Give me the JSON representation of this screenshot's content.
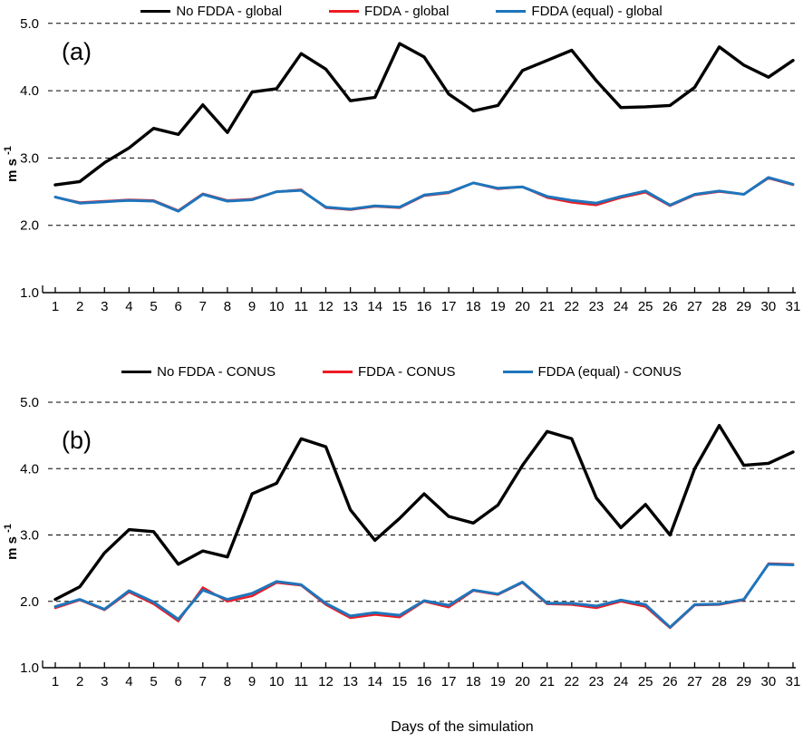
{
  "xlabel": "Days of the simulation",
  "colors": {
    "black": "#000000",
    "red": "#ED1C24",
    "blue": "#1F75BB"
  },
  "chart_data": [
    {
      "id": "a",
      "type": "line",
      "panel_label": "(a)",
      "ylabel": {
        "base": "m s",
        "sup": "-1"
      },
      "ylim": [
        1.0,
        5.0
      ],
      "grid": "horizontal-dashed",
      "legend_position": "top-center",
      "yticks": [
        {
          "value": 1.0,
          "label": "1.0"
        },
        {
          "value": 2.0,
          "label": "2.0"
        },
        {
          "value": 3.0,
          "label": "3.0"
        },
        {
          "value": 4.0,
          "label": "4.0"
        },
        {
          "value": 5.0,
          "label": "5.0"
        }
      ],
      "x": [
        1,
        2,
        3,
        4,
        5,
        6,
        7,
        8,
        9,
        10,
        11,
        12,
        13,
        14,
        15,
        16,
        17,
        18,
        19,
        20,
        21,
        22,
        23,
        24,
        25,
        26,
        27,
        28,
        29,
        30,
        31
      ],
      "series": [
        {
          "name": "No FDDA -  global",
          "color": "#000000",
          "stroke_width": 3.4,
          "values": [
            2.6,
            2.65,
            2.93,
            3.15,
            3.44,
            3.35,
            3.79,
            3.38,
            3.98,
            4.03,
            4.55,
            4.32,
            3.85,
            3.9,
            4.7,
            4.5,
            3.95,
            3.7,
            3.78,
            4.3,
            4.45,
            4.6,
            4.15,
            3.75,
            3.76,
            3.78,
            4.05,
            4.65,
            4.38,
            4.2,
            4.45
          ]
        },
        {
          "name": "FDDA -  global",
          "color": "#ED1C24",
          "stroke_width": 2.4,
          "values": [
            2.42,
            2.34,
            2.36,
            2.38,
            2.37,
            2.22,
            2.47,
            2.37,
            2.39,
            2.5,
            2.53,
            2.26,
            2.23,
            2.28,
            2.26,
            2.44,
            2.48,
            2.63,
            2.54,
            2.57,
            2.41,
            2.34,
            2.3,
            2.41,
            2.49,
            2.29,
            2.45,
            2.5,
            2.46,
            2.7,
            2.6
          ]
        },
        {
          "name": "FDDA (equal) -  global",
          "color": "#1F75BB",
          "stroke_width": 3.0,
          "values": [
            2.42,
            2.33,
            2.35,
            2.37,
            2.36,
            2.21,
            2.46,
            2.36,
            2.38,
            2.5,
            2.52,
            2.27,
            2.24,
            2.29,
            2.27,
            2.45,
            2.49,
            2.63,
            2.55,
            2.57,
            2.43,
            2.37,
            2.33,
            2.43,
            2.51,
            2.3,
            2.46,
            2.51,
            2.46,
            2.71,
            2.61
          ]
        }
      ]
    },
    {
      "id": "b",
      "type": "line",
      "panel_label": "(b)",
      "ylabel": {
        "base": "m s",
        "sup": "-1"
      },
      "ylim": [
        1.0,
        5.0
      ],
      "grid": "horizontal-dashed",
      "legend_position": "top-center",
      "yticks": [
        {
          "value": 1.0,
          "label": "1.0"
        },
        {
          "value": 2.0,
          "label": "2.0"
        },
        {
          "value": 3.0,
          "label": "3.0"
        },
        {
          "value": 4.0,
          "label": "4.0"
        },
        {
          "value": 5.0,
          "label": "5.0"
        }
      ],
      "x": [
        1,
        2,
        3,
        4,
        5,
        6,
        7,
        8,
        9,
        10,
        11,
        12,
        13,
        14,
        15,
        16,
        17,
        18,
        19,
        20,
        21,
        22,
        23,
        24,
        25,
        26,
        27,
        28,
        29,
        30,
        31
      ],
      "series": [
        {
          "name": "No FDDA - CONUS",
          "color": "#000000",
          "stroke_width": 3.4,
          "values": [
            2.03,
            2.22,
            2.73,
            3.08,
            3.05,
            2.56,
            2.76,
            2.67,
            3.62,
            3.78,
            4.45,
            4.33,
            3.38,
            2.92,
            3.25,
            3.62,
            3.28,
            3.18,
            3.45,
            4.05,
            4.56,
            4.45,
            3.56,
            3.11,
            3.46,
            3.0,
            4.0,
            4.65,
            4.05,
            4.08,
            4.25
          ]
        },
        {
          "name": "FDDA - CONUS",
          "color": "#ED1C24",
          "stroke_width": 2.4,
          "values": [
            1.9,
            2.02,
            1.87,
            2.14,
            1.96,
            1.7,
            2.21,
            2.0,
            2.08,
            2.28,
            2.24,
            1.95,
            1.75,
            1.8,
            1.76,
            2.0,
            1.91,
            2.16,
            2.1,
            2.28,
            1.96,
            1.95,
            1.9,
            2.0,
            1.92,
            1.6,
            1.94,
            1.95,
            2.02,
            2.57,
            2.56
          ]
        },
        {
          "name": "FDDA (equal) - CONUS",
          "color": "#1F75BB",
          "stroke_width": 3.0,
          "values": [
            1.92,
            2.03,
            1.88,
            2.16,
            1.99,
            1.73,
            2.17,
            2.03,
            2.12,
            2.3,
            2.25,
            1.97,
            1.78,
            1.83,
            1.79,
            2.01,
            1.94,
            2.17,
            2.11,
            2.29,
            1.97,
            1.97,
            1.93,
            2.02,
            1.95,
            1.61,
            1.95,
            1.96,
            2.03,
            2.56,
            2.55
          ]
        }
      ]
    }
  ]
}
